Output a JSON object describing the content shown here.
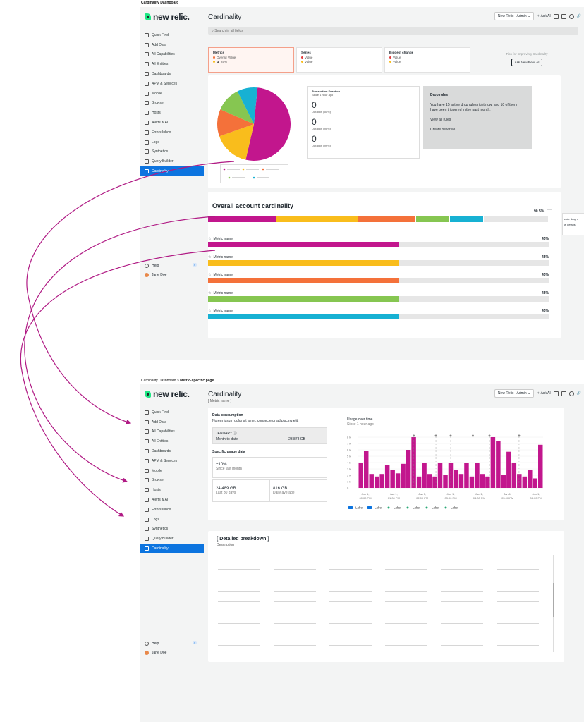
{
  "top_caption": "Cardinality Dashboard",
  "mid_caption": {
    "prefix": "Cardinality Dashboard > ",
    "bold": "Metric-specific page"
  },
  "logo": "new relic.",
  "nav": [
    "Quick Find",
    "Add Data",
    "All Capabilities",
    "All Entities",
    "Dashboards",
    "APM & Services",
    "Mobile",
    "Browser",
    "Hosts",
    "Alerts & AI",
    "Errors Inbox",
    "Logs",
    "Synthetics",
    "Query Builder",
    "Cardinality"
  ],
  "help": {
    "label": "Help",
    "badge": "4"
  },
  "user": "Jane Doe",
  "page_title": "Cardinality",
  "metric_name_sub": "[ Metric name ]",
  "toolbar": {
    "account": "New Relic - Admin",
    "ask_ai": "Ask AI"
  },
  "search_placeholder": "Search in all fields",
  "colors": {
    "magenta": "#c2168d",
    "yellow": "#f9bd1c",
    "orange": "#f4713a",
    "green": "#86c651",
    "cyan": "#17b1d3",
    "red": "#e23b3b",
    "accent": "#0c74df"
  },
  "summary_cards": [
    {
      "title": "Metrics",
      "rows": [
        {
          "color": "#f4713a",
          "text": "Overall Value"
        },
        {
          "color": "#f9bd1c",
          "text": "▲ 25%"
        }
      ]
    },
    {
      "title": "Series",
      "rows": [
        {
          "color": "#e23b3b",
          "text": "Value"
        },
        {
          "color": "#f9bd1c",
          "text": "Value"
        }
      ]
    },
    {
      "title": "Biggest change",
      "rows": [
        {
          "color": "#e23b3b",
          "text": "Value"
        },
        {
          "color": "#f9bd1c",
          "text": "Value"
        }
      ]
    }
  ],
  "tips": {
    "title": "Tips for improving Cardinality",
    "button": "Ask New Relic AI"
  },
  "pie": [
    52,
    16,
    12,
    11,
    9
  ],
  "txn": {
    "title": "Transaction Duration",
    "sub": "Since 1 hour ago",
    "items": [
      {
        "value": "0",
        "label": "Duration (50%)"
      },
      {
        "value": "0",
        "label": "Duration (95%)"
      },
      {
        "value": "0",
        "label": "Duration (99%)"
      }
    ]
  },
  "drop": {
    "title": "Drop rules",
    "body": "You have 15 active drop rules right now, and 10 of them have been triggered in the past month.",
    "link1": "View all rules",
    "link2": "Create new rule"
  },
  "overall": {
    "title": "Overall account cardinality",
    "pct": "90.5%",
    "segments": [
      20,
      24,
      17,
      10,
      10,
      19
    ],
    "popup": [
      "eate drop r",
      "w details"
    ]
  },
  "metric_rows": [
    {
      "name": "Metric name",
      "pct": "45%",
      "color": "#c2168d",
      "fill": 0.56
    },
    {
      "name": "Metric name",
      "pct": "45%",
      "color": "#f9bd1c",
      "fill": 0.56
    },
    {
      "name": "Metric name",
      "pct": "45%",
      "color": "#f4713a",
      "fill": 0.56
    },
    {
      "name": "Metric name",
      "pct": "45%",
      "color": "#86c651",
      "fill": 0.56
    },
    {
      "name": "Metric name",
      "pct": "45%",
      "color": "#17b1d3",
      "fill": 0.56
    }
  ],
  "consumption": {
    "title": "Data consumption",
    "desc": "Norem ipsum dolor sit amet, consectetur adipiscing elit.",
    "month": "JANUARY",
    "mtd_label": "Month-to-date",
    "mtd_value": "23,878 GB"
  },
  "usage_data": {
    "title": "Specific usage data",
    "change": "+10%",
    "change_label": "Since last month",
    "total": "24,489 GB",
    "total_label": "Last 30 days",
    "avg": "816 GB",
    "avg_label": "Daily average"
  },
  "usage_chart": {
    "title": "Usage over time",
    "sub": "Since 1 hour ago",
    "legend": [
      "Label",
      "Label",
      "Label",
      "Label",
      "Label",
      "Label"
    ]
  },
  "chart_data": {
    "type": "bar",
    "yticks": [
      "8 k",
      "7 k",
      "6 k",
      "5 k",
      "4 k",
      "3 k",
      "2 k",
      "1 k",
      "0"
    ],
    "xticks": [
      [
        "Jan 1,",
        "00:00 PM"
      ],
      [
        "Jan 1,",
        "01:00 PM"
      ],
      [
        "Jan 1,",
        "02:00 PM"
      ],
      [
        "Jan 1,",
        "03:00 PM"
      ],
      [
        "Jan 1,",
        "04:00 PM"
      ],
      [
        "Jan 1,",
        "05:00 PM"
      ],
      [
        "Jan 1,",
        "06:00 PM"
      ]
    ],
    "values": [
      4,
      5.8,
      2.2,
      1.8,
      2.2,
      3.6,
      2.8,
      2.3,
      3.8,
      6,
      8,
      1.8,
      4,
      2.2,
      1.8,
      4,
      2,
      4,
      2.8,
      2.2,
      4,
      1.8,
      4,
      2.2,
      1.8,
      8,
      7.4,
      2,
      5.7,
      4,
      2.2,
      1.8,
      2.8,
      1.5,
      6.8
    ],
    "ylim": [
      0,
      8
    ]
  },
  "breakdown": {
    "title": "[ Detailed breakdown ]",
    "desc": "Description"
  }
}
